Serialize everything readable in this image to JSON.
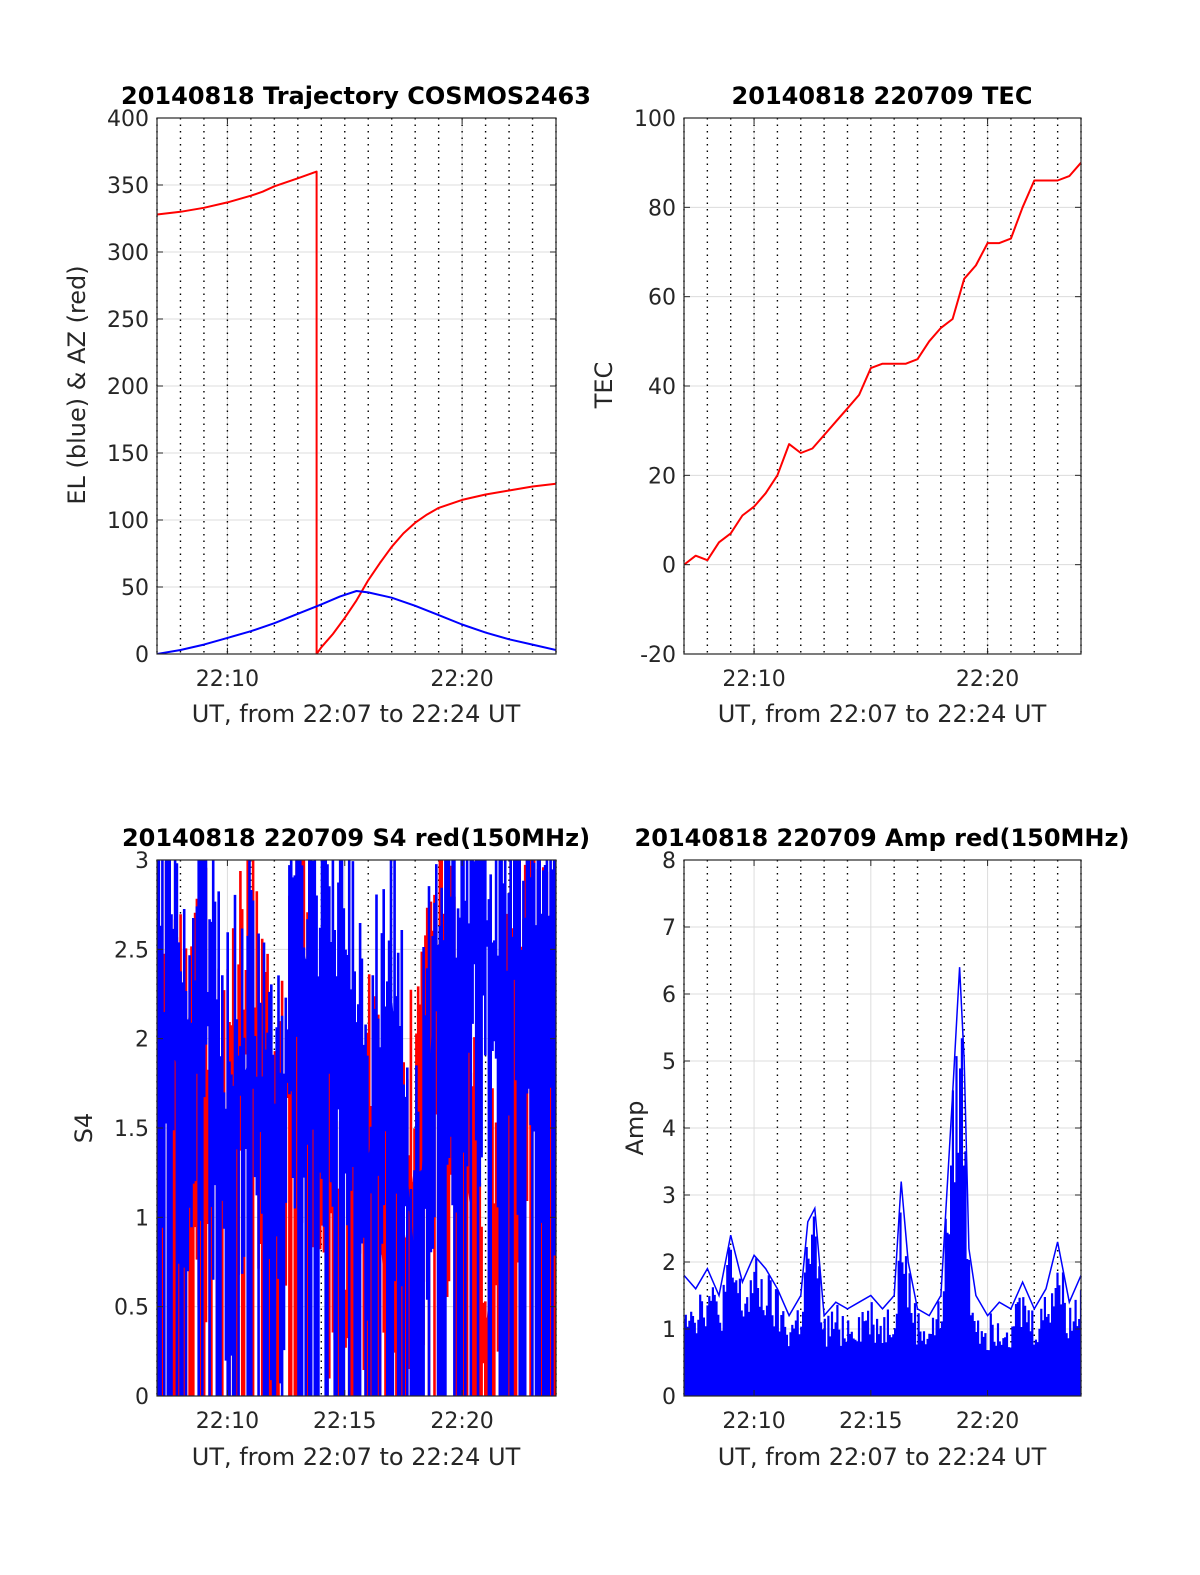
{
  "figure": {
    "background": "#ffffff"
  },
  "colors": {
    "red": "#ff0000",
    "blue": "#0000ff",
    "grid": "#dcdcdc",
    "axis": "#262626"
  },
  "chart_data": [
    {
      "id": "trajectory",
      "type": "line",
      "title": "20140818 Trajectory COSMOS2463",
      "xlabel": "UT, from 22:07 to 22:24 UT",
      "ylabel": "EL (blue) & AZ (red)",
      "xlim": [
        7,
        24
      ],
      "ylim": [
        0,
        400
      ],
      "xticks": [
        10,
        20
      ],
      "xtick_labels": [
        "22:10",
        "22:20"
      ],
      "yticks": [
        0,
        50,
        100,
        150,
        200,
        250,
        300,
        350,
        400
      ],
      "ytick_labels": [
        "0",
        "50",
        "100",
        "150",
        "200",
        "250",
        "300",
        "350",
        "400"
      ],
      "grid": true,
      "series": [
        {
          "color": "#ff0000",
          "x": [
            7.0,
            8.0,
            9.0,
            10.0,
            11.0,
            11.5,
            12.0,
            12.5,
            13.0,
            13.8,
            13.8,
            14.0,
            14.5,
            15.0,
            15.5,
            16.0,
            16.5,
            17.0,
            17.5,
            18.0,
            18.5,
            19.0,
            20.0,
            21.0,
            22.0,
            23.0,
            24.0
          ],
          "y": [
            328,
            330,
            333,
            337,
            342,
            345,
            349,
            352,
            355,
            360,
            0,
            5,
            15,
            27,
            40,
            55,
            68,
            80,
            90,
            98,
            104,
            109,
            115,
            119,
            122,
            125,
            127
          ]
        },
        {
          "color": "#0000ff",
          "x": [
            7.0,
            8.0,
            9.0,
            10.0,
            11.0,
            12.0,
            13.0,
            14.0,
            14.8,
            15.5,
            16.0,
            17.0,
            18.0,
            19.0,
            20.0,
            21.0,
            22.0,
            23.0,
            24.0
          ],
          "y": [
            0,
            3,
            7,
            12,
            17,
            23,
            30,
            37,
            43,
            47,
            46,
            42,
            36,
            29,
            22,
            16,
            11,
            7,
            3
          ]
        }
      ]
    },
    {
      "id": "tec",
      "type": "line",
      "title": "20140818 220709 TEC",
      "xlabel": "UT, from 22:07 to 22:24 UT",
      "ylabel": "TEC",
      "xlim": [
        7,
        24
      ],
      "ylim": [
        -20,
        100
      ],
      "xticks": [
        10,
        20
      ],
      "xtick_labels": [
        "22:10",
        "22:20"
      ],
      "yticks": [
        -20,
        0,
        20,
        40,
        60,
        80,
        100
      ],
      "ytick_labels": [
        "-20",
        "0",
        "20",
        "40",
        "60",
        "80",
        "100"
      ],
      "grid": true,
      "series": [
        {
          "color": "#ff0000",
          "x": [
            7.0,
            7.5,
            8.0,
            8.5,
            9.0,
            9.5,
            10.0,
            10.5,
            11.0,
            11.5,
            12.0,
            12.5,
            13.0,
            13.5,
            14.0,
            14.5,
            15.0,
            15.5,
            16.0,
            16.5,
            17.0,
            17.5,
            18.0,
            18.5,
            19.0,
            19.5,
            20.0,
            20.5,
            21.0,
            21.5,
            22.0,
            22.5,
            23.0,
            23.5,
            24.0
          ],
          "y": [
            0,
            2,
            1,
            5,
            7,
            11,
            13,
            16,
            20,
            27,
            25,
            26,
            29,
            32,
            35,
            38,
            44,
            45,
            45,
            45,
            46,
            50,
            53,
            55,
            64,
            67,
            72,
            72,
            73,
            80,
            86,
            86,
            86,
            87,
            90
          ]
        }
      ]
    },
    {
      "id": "s4",
      "type": "line",
      "title": "20140818 220709 S4 red(150MHz)",
      "xlabel": "UT, from 22:07 to 22:24 UT",
      "ylabel": "S4",
      "xlim": [
        7,
        24
      ],
      "ylim": [
        0,
        3
      ],
      "xticks": [
        10,
        15,
        20
      ],
      "xtick_labels": [
        "22:10",
        "22:15",
        "22:20"
      ],
      "yticks": [
        0,
        0.5,
        1,
        1.5,
        2,
        2.5,
        3
      ],
      "ytick_labels": [
        "0",
        "0.5",
        "1",
        "1.5",
        "2",
        "2.5",
        "3"
      ],
      "grid": true,
      "series": [
        {
          "color": "#ff0000",
          "x": [
            7.0,
            8.0,
            9.0,
            10.0,
            11.0,
            12.0,
            13.0,
            14.0,
            15.0,
            16.0,
            17.0,
            18.0,
            19.0,
            20.0,
            21.0,
            22.0,
            23.0,
            24.0
          ],
          "y": [
            2.1,
            1.5,
            1.8,
            1.3,
            2.2,
            1.0,
            2.5,
            1.6,
            0.4,
            1.7,
            0.2,
            1.3,
            2.2,
            1.5,
            0.3,
            1.9,
            2.4,
            2.0
          ]
        },
        {
          "color": "#0000ff",
          "x": [
            7.0,
            8.0,
            9.0,
            10.0,
            11.0,
            12.0,
            13.0,
            14.0,
            15.0,
            16.0,
            17.0,
            18.0,
            19.0,
            20.0,
            21.0,
            22.0,
            23.0,
            24.0
          ],
          "y": [
            2.2,
            1.8,
            2.3,
            1.5,
            1.9,
            1.0,
            2.6,
            2.1,
            2.4,
            1.3,
            2.2,
            0.7,
            2.5,
            2.4,
            2.6,
            2.3,
            2.5,
            2.1
          ]
        }
      ]
    },
    {
      "id": "amp",
      "type": "line",
      "title": "20140818 220709 Amp red(150MHz)",
      "xlabel": "UT, from 22:07 to 22:24 UT",
      "ylabel": "Amp",
      "xlim": [
        7,
        24
      ],
      "ylim": [
        0,
        8
      ],
      "xticks": [
        10,
        15,
        20
      ],
      "xtick_labels": [
        "22:10",
        "22:15",
        "22:20"
      ],
      "yticks": [
        0,
        1,
        2,
        3,
        4,
        5,
        6,
        7,
        8
      ],
      "ytick_labels": [
        "0",
        "1",
        "2",
        "3",
        "4",
        "5",
        "6",
        "7",
        "8"
      ],
      "grid": true,
      "series": [
        {
          "color": "#0000ff",
          "x": [
            7.0,
            7.5,
            8.0,
            8.5,
            9.0,
            9.5,
            10.0,
            10.5,
            11.0,
            11.5,
            12.0,
            12.3,
            12.6,
            13.0,
            13.5,
            14.0,
            14.5,
            15.0,
            15.5,
            16.0,
            16.3,
            16.6,
            17.0,
            17.5,
            18.0,
            18.5,
            18.8,
            19.0,
            19.2,
            19.5,
            20.0,
            20.5,
            21.0,
            21.5,
            22.0,
            22.5,
            23.0,
            23.5,
            24.0
          ],
          "y": [
            1.8,
            1.6,
            1.9,
            1.5,
            2.4,
            1.7,
            2.1,
            1.9,
            1.6,
            1.2,
            1.5,
            2.6,
            2.8,
            1.2,
            1.4,
            1.3,
            1.4,
            1.5,
            1.3,
            1.5,
            3.2,
            2.0,
            1.3,
            1.2,
            1.5,
            4.5,
            6.4,
            5.0,
            2.2,
            1.5,
            1.2,
            1.4,
            1.3,
            1.7,
            1.3,
            1.6,
            2.3,
            1.4,
            1.8
          ]
        }
      ]
    }
  ]
}
